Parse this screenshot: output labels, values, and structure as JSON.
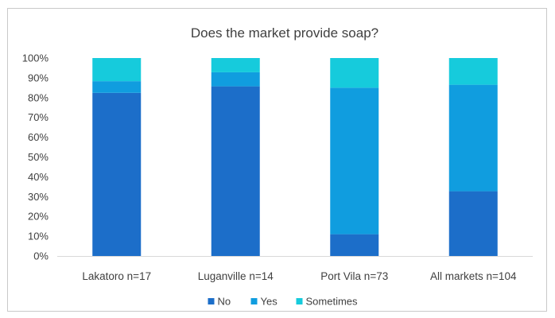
{
  "chart_data": {
    "type": "bar",
    "stacked": true,
    "normalized": true,
    "title": "Does the market provide soap?",
    "xlabel": "",
    "ylabel": "",
    "categories": [
      "Lakatoro n=17",
      "Luganville n=14",
      "Port Vila n=73",
      "All markets n=104"
    ],
    "series": [
      {
        "name": "No",
        "color": "#1c6ec9",
        "values": [
          82.4,
          85.7,
          11.0,
          32.7
        ]
      },
      {
        "name": "Yes",
        "color": "#109ddf",
        "values": [
          5.9,
          7.1,
          74.0,
          53.8
        ]
      },
      {
        "name": "Sometimes",
        "color": "#16cbdc",
        "values": [
          11.7,
          7.2,
          15.0,
          13.5
        ]
      }
    ],
    "ylim": [
      0,
      100
    ],
    "yticks": [
      "0%",
      "10%",
      "20%",
      "30%",
      "40%",
      "50%",
      "60%",
      "70%",
      "80%",
      "90%",
      "100%"
    ],
    "grid": false,
    "legend_position": "bottom"
  }
}
